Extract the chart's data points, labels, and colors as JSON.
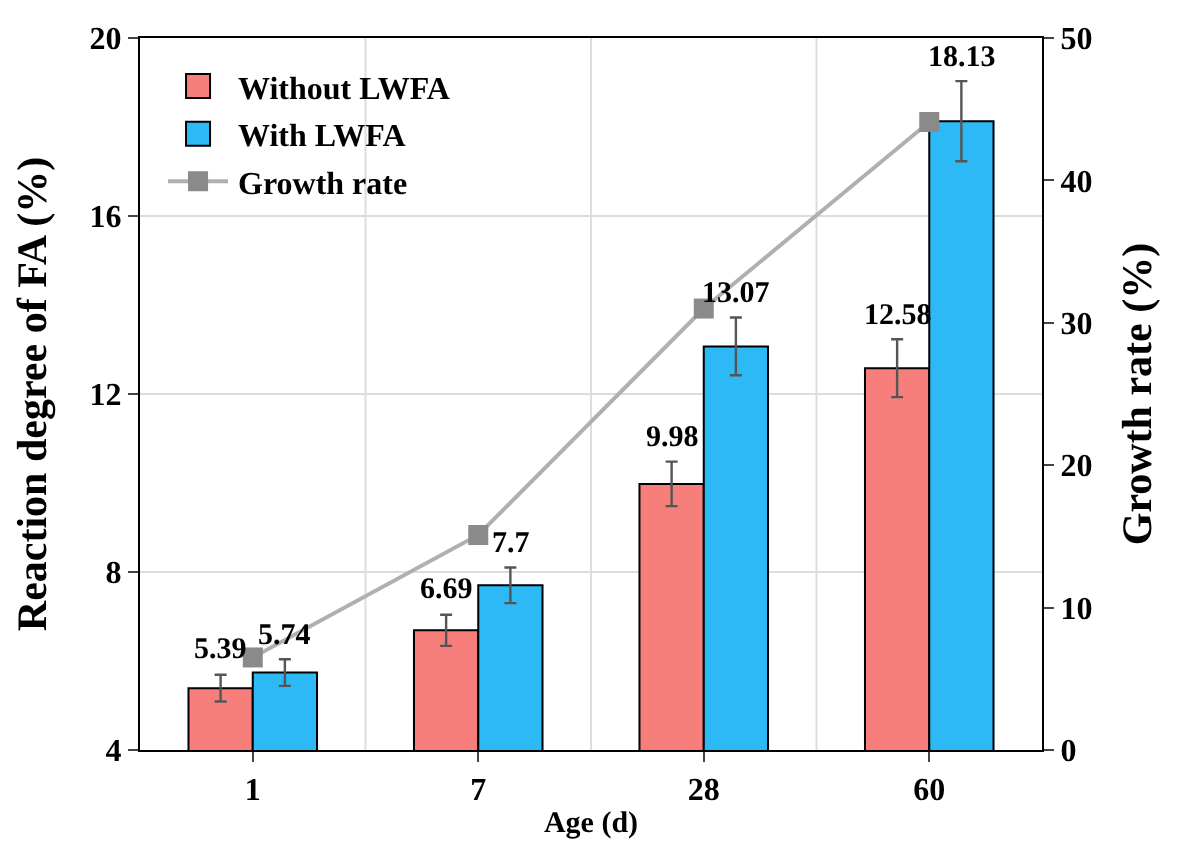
{
  "chart_data": {
    "type": "bar",
    "xlabel": "Age (d)",
    "ylabel": "Reaction degree of FA (%)",
    "y2label": "Growth rate (%)",
    "categories": [
      "1",
      "7",
      "28",
      "60"
    ],
    "series": [
      {
        "name": "Without LWFA",
        "color": "#f77f7b",
        "values": [
          5.39,
          6.69,
          9.98,
          12.58
        ],
        "errors": [
          0.3,
          0.35,
          0.5,
          0.65
        ],
        "value_labels": [
          "5.39",
          "6.69",
          "9.98",
          "12.58"
        ]
      },
      {
        "name": "With LWFA",
        "color": "#2db8f6",
        "values": [
          5.74,
          7.7,
          13.07,
          18.13
        ],
        "errors": [
          0.3,
          0.4,
          0.65,
          0.9
        ],
        "value_labels": [
          "5.74",
          "7.7",
          "13.07",
          "18.13"
        ]
      },
      {
        "name": "Growth rate",
        "type": "line",
        "axis": "y2",
        "color": "#8a8a8a",
        "marker": "square",
        "values": [
          6.5,
          15.1,
          31.0,
          44.1
        ]
      }
    ],
    "ylim": [
      4,
      20
    ],
    "yticks": [
      4,
      8,
      12,
      16,
      20
    ],
    "y2lim": [
      0,
      50
    ],
    "y2ticks": [
      0,
      10,
      20,
      30,
      40,
      50
    ],
    "grid": true,
    "legend": "top left"
  }
}
